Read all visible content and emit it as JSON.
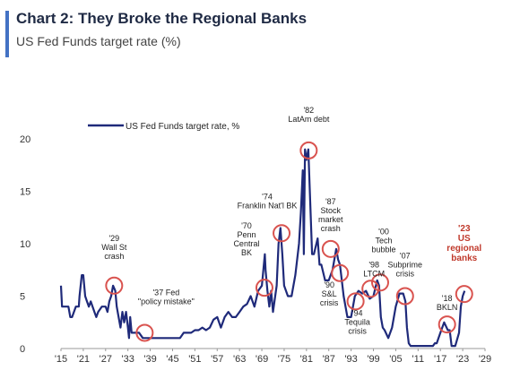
{
  "header": {
    "title": "Chart 2: They Broke the Regional Banks",
    "subtitle": "US Fed Funds target rate (%)"
  },
  "colors": {
    "accent": "#4472c4",
    "line": "#1f2a7a",
    "highlight": "#c0392b",
    "circle": "#d9534f"
  },
  "chart_data": {
    "type": "line",
    "title": "",
    "xlabel": "",
    "ylabel": "",
    "xlim": [
      1915,
      2029
    ],
    "ylim": [
      0,
      20
    ],
    "yticks": [
      "0",
      "5",
      "10",
      "15",
      "20"
    ],
    "xticks": [
      "'15",
      "'21",
      "'27",
      "'33",
      "'39",
      "'45",
      "'51",
      "'57",
      "'63",
      "'69",
      "'75",
      "'81",
      "'87",
      "'93",
      "'99",
      "'05",
      "'11",
      "'17",
      "'23",
      "'29"
    ],
    "xtick_values": [
      1915,
      1921,
      1927,
      1933,
      1939,
      1945,
      1951,
      1957,
      1963,
      1969,
      1975,
      1981,
      1987,
      1993,
      1999,
      2005,
      2011,
      2017,
      2023,
      2029
    ],
    "grid": false,
    "legend": {
      "label": "US Fed Funds target rate, %",
      "position": "top-left"
    },
    "series": [
      {
        "name": "US Fed Funds target rate, %",
        "x": [
          1915,
          1915.3,
          1916,
          1917,
          1917.5,
          1918,
          1919,
          1919.8,
          1920,
          1920.6,
          1921,
          1921.5,
          1922,
          1922.5,
          1923,
          1924,
          1924.5,
          1925,
          1926,
          1927,
          1927.5,
          1928,
          1928.5,
          1929,
          1929.6,
          1930,
          1930.5,
          1931,
          1931.5,
          1932,
          1932.5,
          1933,
          1933.3,
          1933.6,
          1934,
          1935,
          1936,
          1937,
          1937.5,
          1938,
          1940,
          1942,
          1944,
          1946,
          1947,
          1948,
          1949,
          1950,
          1951,
          1952,
          1953,
          1954,
          1955,
          1956,
          1957,
          1958,
          1959,
          1960,
          1961,
          1962,
          1963,
          1964,
          1965,
          1966,
          1967,
          1968,
          1969,
          1969.8,
          1970,
          1970.5,
          1971,
          1971.5,
          1972,
          1973,
          1973.5,
          1974,
          1974.5,
          1975,
          1976,
          1977,
          1978,
          1979,
          1979.5,
          1980,
          1980.3,
          1980.6,
          1981,
          1981.5,
          1982,
          1982.5,
          1983,
          1984,
          1984.5,
          1985,
          1986,
          1987,
          1988,
          1989,
          1989.5,
          1990,
          1991,
          1992,
          1993,
          1994,
          1995,
          1996,
          1997,
          1998,
          1999,
          2000,
          2000.5,
          2001,
          2001.5,
          2002,
          2003,
          2004,
          2005,
          2006,
          2007,
          2007.6,
          2008,
          2008.5,
          2009,
          2012,
          2015,
          2015.5,
          2016,
          2017,
          2018,
          2019,
          2019.5,
          2020,
          2020.3,
          2021,
          2022,
          2022.5,
          2023,
          2023.5
        ],
        "values": [
          6,
          4,
          4,
          4,
          3,
          3,
          4,
          4,
          5,
          7,
          7,
          5,
          4.5,
          4,
          4.5,
          3.5,
          3,
          3.5,
          4,
          4,
          3.5,
          4.5,
          5,
          6,
          5.5,
          4,
          3,
          2,
          3.5,
          2.5,
          3.5,
          2,
          1,
          3,
          1.5,
          1.5,
          1.5,
          1,
          1,
          1,
          1,
          1,
          1,
          1,
          1,
          1.5,
          1.5,
          1.5,
          1.75,
          1.75,
          2,
          1.75,
          2,
          2.75,
          3,
          2,
          3,
          3.5,
          3,
          3,
          3.5,
          4,
          4.25,
          5,
          4,
          5.5,
          6,
          9,
          7.5,
          5.5,
          4,
          5.5,
          3.5,
          6,
          10,
          11.5,
          9,
          6,
          5,
          5,
          7,
          10,
          13,
          17,
          9,
          19,
          18,
          19,
          14,
          9,
          9,
          10.5,
          8,
          8,
          6.5,
          6.5,
          7.5,
          9.5,
          8.5,
          8,
          5,
          3,
          3,
          5,
          5.5,
          5.25,
          5.5,
          4.75,
          5,
          6.5,
          6,
          3,
          2,
          1.75,
          1,
          2,
          4,
          5.25,
          5.25,
          4.5,
          2,
          0.5,
          0.25,
          0.25,
          0.25,
          0.5,
          0.5,
          1.5,
          2.5,
          1.75,
          1.75,
          0.25,
          0.25,
          0.25,
          1.5,
          4,
          5,
          5.5
        ]
      }
    ],
    "annotations": [
      {
        "lines": [
          "'29",
          "Wall St",
          "crash"
        ],
        "x": 1929.3,
        "y": 6,
        "highlight": false
      },
      {
        "lines": [
          "'37 Fed",
          "\"policy mistake\""
        ],
        "x": 1937.5,
        "y": 1.5,
        "highlight": false
      },
      {
        "lines": [
          "'70",
          "Penn",
          "Central",
          "BK"
        ],
        "x": 1969.7,
        "y": 5.8,
        "highlight": false
      },
      {
        "lines": [
          "'74",
          "Franklin Nat'l BK"
        ],
        "x": 1974.3,
        "y": 11,
        "highlight": false
      },
      {
        "lines": [
          "'82",
          "LatAm debt"
        ],
        "x": 1981.6,
        "y": 18.9,
        "highlight": false
      },
      {
        "lines": [
          "'87",
          "Stock",
          "market",
          "crash"
        ],
        "x": 1987.5,
        "y": 9.5,
        "highlight": false
      },
      {
        "lines": [
          "'90",
          "S&L",
          "crisis"
        ],
        "x": 1990,
        "y": 7.2,
        "highlight": false
      },
      {
        "lines": [
          "'98",
          "LTCM"
        ],
        "x": 1998.2,
        "y": 5.7,
        "highlight": false
      },
      {
        "lines": [
          "'94",
          "Tequila",
          "crisis"
        ],
        "x": 1994.2,
        "y": 4.5,
        "highlight": false
      },
      {
        "lines": [
          "'00",
          "Tech",
          "bubble"
        ],
        "x": 2000.8,
        "y": 6.3,
        "highlight": false
      },
      {
        "lines": [
          "'07",
          "Subprime",
          "crisis"
        ],
        "x": 2007.5,
        "y": 5,
        "highlight": false
      },
      {
        "lines": [
          "'18",
          "BKLN"
        ],
        "x": 2018.8,
        "y": 2.3,
        "highlight": false
      },
      {
        "lines": [
          "'23",
          "US",
          "regional",
          "banks"
        ],
        "x": 2023.4,
        "y": 5.2,
        "highlight": true
      }
    ]
  }
}
